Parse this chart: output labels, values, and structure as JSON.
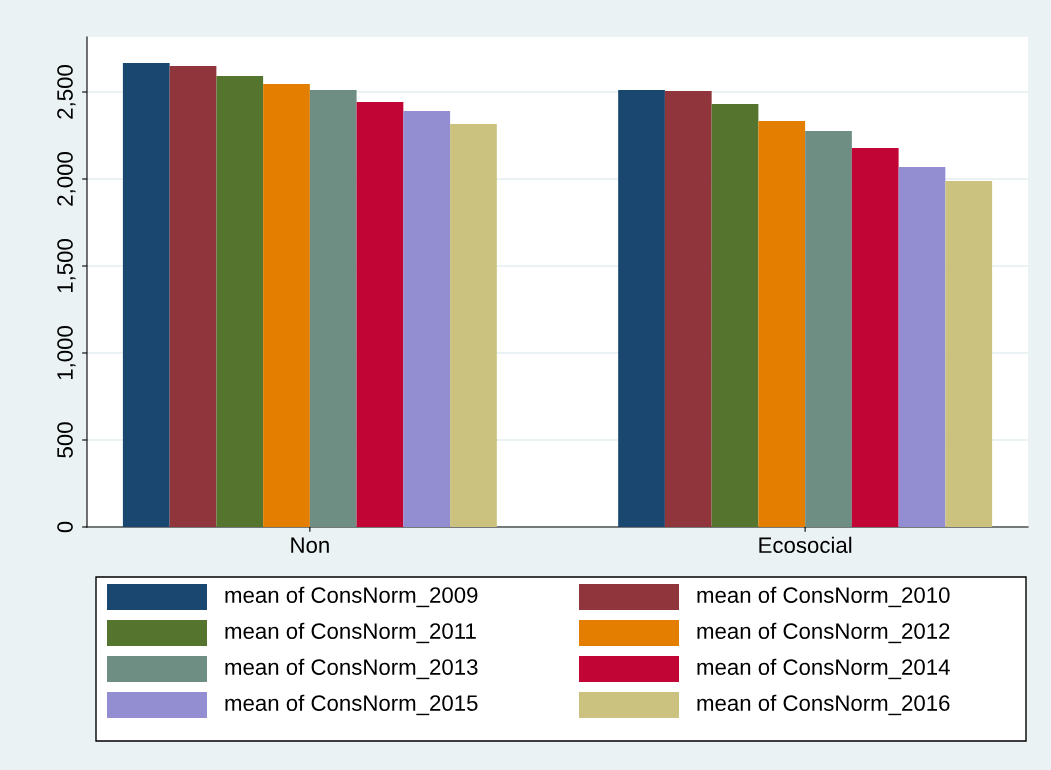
{
  "chart_data": {
    "type": "bar",
    "categories": [
      "Non",
      "Ecosocial"
    ],
    "series": [
      {
        "name": "mean of ConsNorm_2009",
        "color": "#1a476f",
        "values": [
          2667,
          2511
        ]
      },
      {
        "name": "mean of ConsNorm_2010",
        "color": "#90353b",
        "values": [
          2649,
          2506
        ]
      },
      {
        "name": "mean of ConsNorm_2011",
        "color": "#55752f",
        "values": [
          2592,
          2431
        ]
      },
      {
        "name": "mean of ConsNorm_2012",
        "color": "#e37e00",
        "values": [
          2546,
          2333
        ]
      },
      {
        "name": "mean of ConsNorm_2013",
        "color": "#6e8e84",
        "values": [
          2511,
          2276
        ]
      },
      {
        "name": "mean of ConsNorm_2014",
        "color": "#c10534",
        "values": [
          2443,
          2178
        ]
      },
      {
        "name": "mean of ConsNorm_2015",
        "color": "#938dd2",
        "values": [
          2391,
          2069
        ]
      },
      {
        "name": "mean of ConsNorm_2016",
        "color": "#cac27e",
        "values": [
          2316,
          1989
        ]
      }
    ],
    "ylim": [
      0,
      2816
    ],
    "yticks": [
      0,
      {
        "value": 500,
        "label": "500"
      },
      {
        "value": 1000,
        "label": "1,000"
      },
      {
        "value": 1500,
        "label": "1,500"
      },
      {
        "value": 2000,
        "label": "2,000"
      },
      {
        "value": 2500,
        "label": "2,500"
      }
    ],
    "grid": "y",
    "legend": "bottom"
  }
}
